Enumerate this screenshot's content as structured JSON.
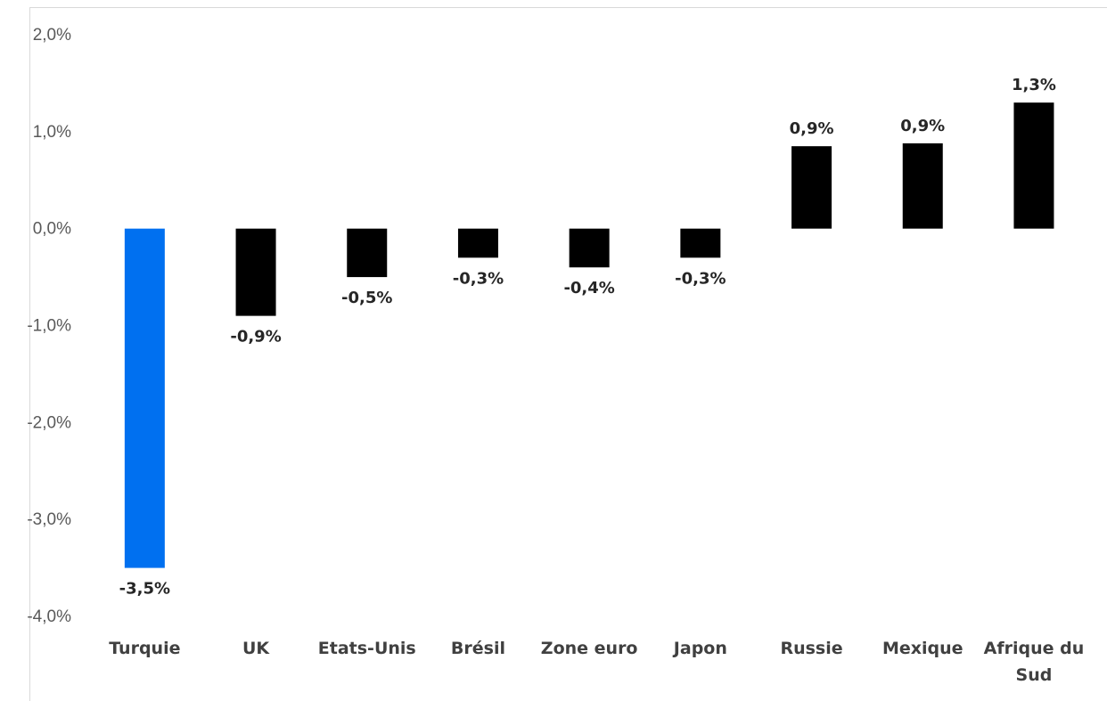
{
  "chart_data": {
    "type": "bar",
    "categories": [
      "Turquie",
      "UK",
      "Etats-Unis",
      "Brésil",
      "Zone euro",
      "Japon",
      "Russie",
      "Mexique",
      "Afrique du Sud"
    ],
    "series": [
      {
        "values": [
          -3.5,
          -0.9,
          -0.5,
          -0.3,
          -0.4,
          -0.3,
          0.85,
          0.88,
          1.3
        ],
        "data_labels": [
          "-3,5%",
          "-0,9%",
          "-0,5%",
          "-0,3%",
          "-0,4%",
          "-0,3%",
          "0,9%",
          "0,9%",
          "1,3%"
        ]
      }
    ],
    "highlight_index": 0,
    "ylim": [
      -4.0,
      2.0
    ],
    "yticks": [
      2.0,
      1.0,
      0.0,
      -1.0,
      -2.0,
      -3.0,
      -4.0
    ],
    "ytick_labels": [
      "2,0%",
      "1,0%",
      "0,0%",
      "-1,0%",
      "-2,0%",
      "-3,0%",
      "-4,0%"
    ],
    "title": "",
    "xlabel": "",
    "ylabel": "",
    "grid": false,
    "legend": "none",
    "colors": {
      "bar": "#000000",
      "highlight": "#0070f0",
      "tick_text": "#595959",
      "category_text": "#404040",
      "label_text": "#262626"
    }
  }
}
